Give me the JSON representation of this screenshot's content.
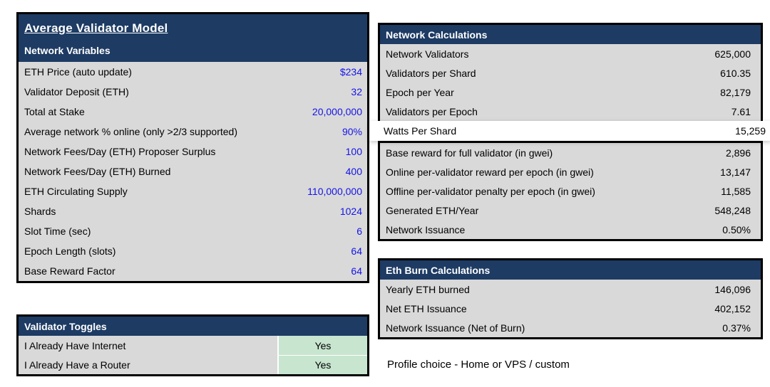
{
  "colors": {
    "navy": "#1d3b63",
    "row_gray": "#d9d9d9",
    "toggle_green": "#c7e5cf",
    "input_blue": "#1414ea",
    "border_black": "#000000"
  },
  "left_panel": {
    "title": "Average Validator Model",
    "network_variables": {
      "header": "Network Variables",
      "rows": [
        {
          "label": "ETH Price (auto update)",
          "value": "$234"
        },
        {
          "label": "Validator Deposit (ETH)",
          "value": "32"
        },
        {
          "label": "Total at Stake",
          "value": "20,000,000"
        },
        {
          "label": "Average network % online (only >2/3 supported)",
          "value": "90%"
        },
        {
          "label": "Network Fees/Day (ETH) Proposer Surplus",
          "value": "100"
        },
        {
          "label": "Network Fees/Day (ETH) Burned",
          "value": "400"
        },
        {
          "label": "ETH Circulating Supply",
          "value": "110,000,000"
        },
        {
          "label": "Shards",
          "value": "1024"
        },
        {
          "label": "Slot Time (sec)",
          "value": "6"
        },
        {
          "label": "Epoch Length (slots)",
          "value": "64"
        },
        {
          "label": "Base Reward Factor",
          "value": "64"
        }
      ]
    },
    "validator_toggles": {
      "header": "Validator Toggles",
      "rows": [
        {
          "label": "I Already Have Internet",
          "value": "Yes"
        },
        {
          "label": "I Already Have a Router",
          "value": "Yes"
        }
      ]
    }
  },
  "right_panel": {
    "network_calculations": {
      "header": "Network Calculations",
      "rows_top": [
        {
          "label": "Network Validators",
          "value": "625,000"
        },
        {
          "label": "Validators per Shard",
          "value": "610.35"
        },
        {
          "label": "Epoch per Year",
          "value": "82,179"
        },
        {
          "label": "Validators per Epoch",
          "value": "7.61"
        }
      ],
      "floating_row": {
        "label": "Watts Per Shard",
        "value": "15,259"
      },
      "rows_bottom": [
        {
          "label": "Base reward for full validator (in gwei)",
          "value": "2,896"
        },
        {
          "label": "Online per-validator reward per epoch (in gwei)",
          "value": "13,147"
        },
        {
          "label": "Offline per-validator penalty per epoch (in gwei)",
          "value": "11,585"
        },
        {
          "label": "Generated ETH/Year",
          "value": "548,248"
        },
        {
          "label": "Network Issuance",
          "value": "0.50%"
        }
      ]
    },
    "eth_burn_calculations": {
      "header": "Eth Burn Calculations",
      "rows": [
        {
          "label": "Yearly ETH burned",
          "value": "146,096"
        },
        {
          "label": "Net ETH Issuance",
          "value": "402,152"
        },
        {
          "label": "Network Issuance (Net of Burn)",
          "value": "0.37%"
        }
      ]
    },
    "footer_note": "Profile choice - Home or VPS / custom"
  }
}
